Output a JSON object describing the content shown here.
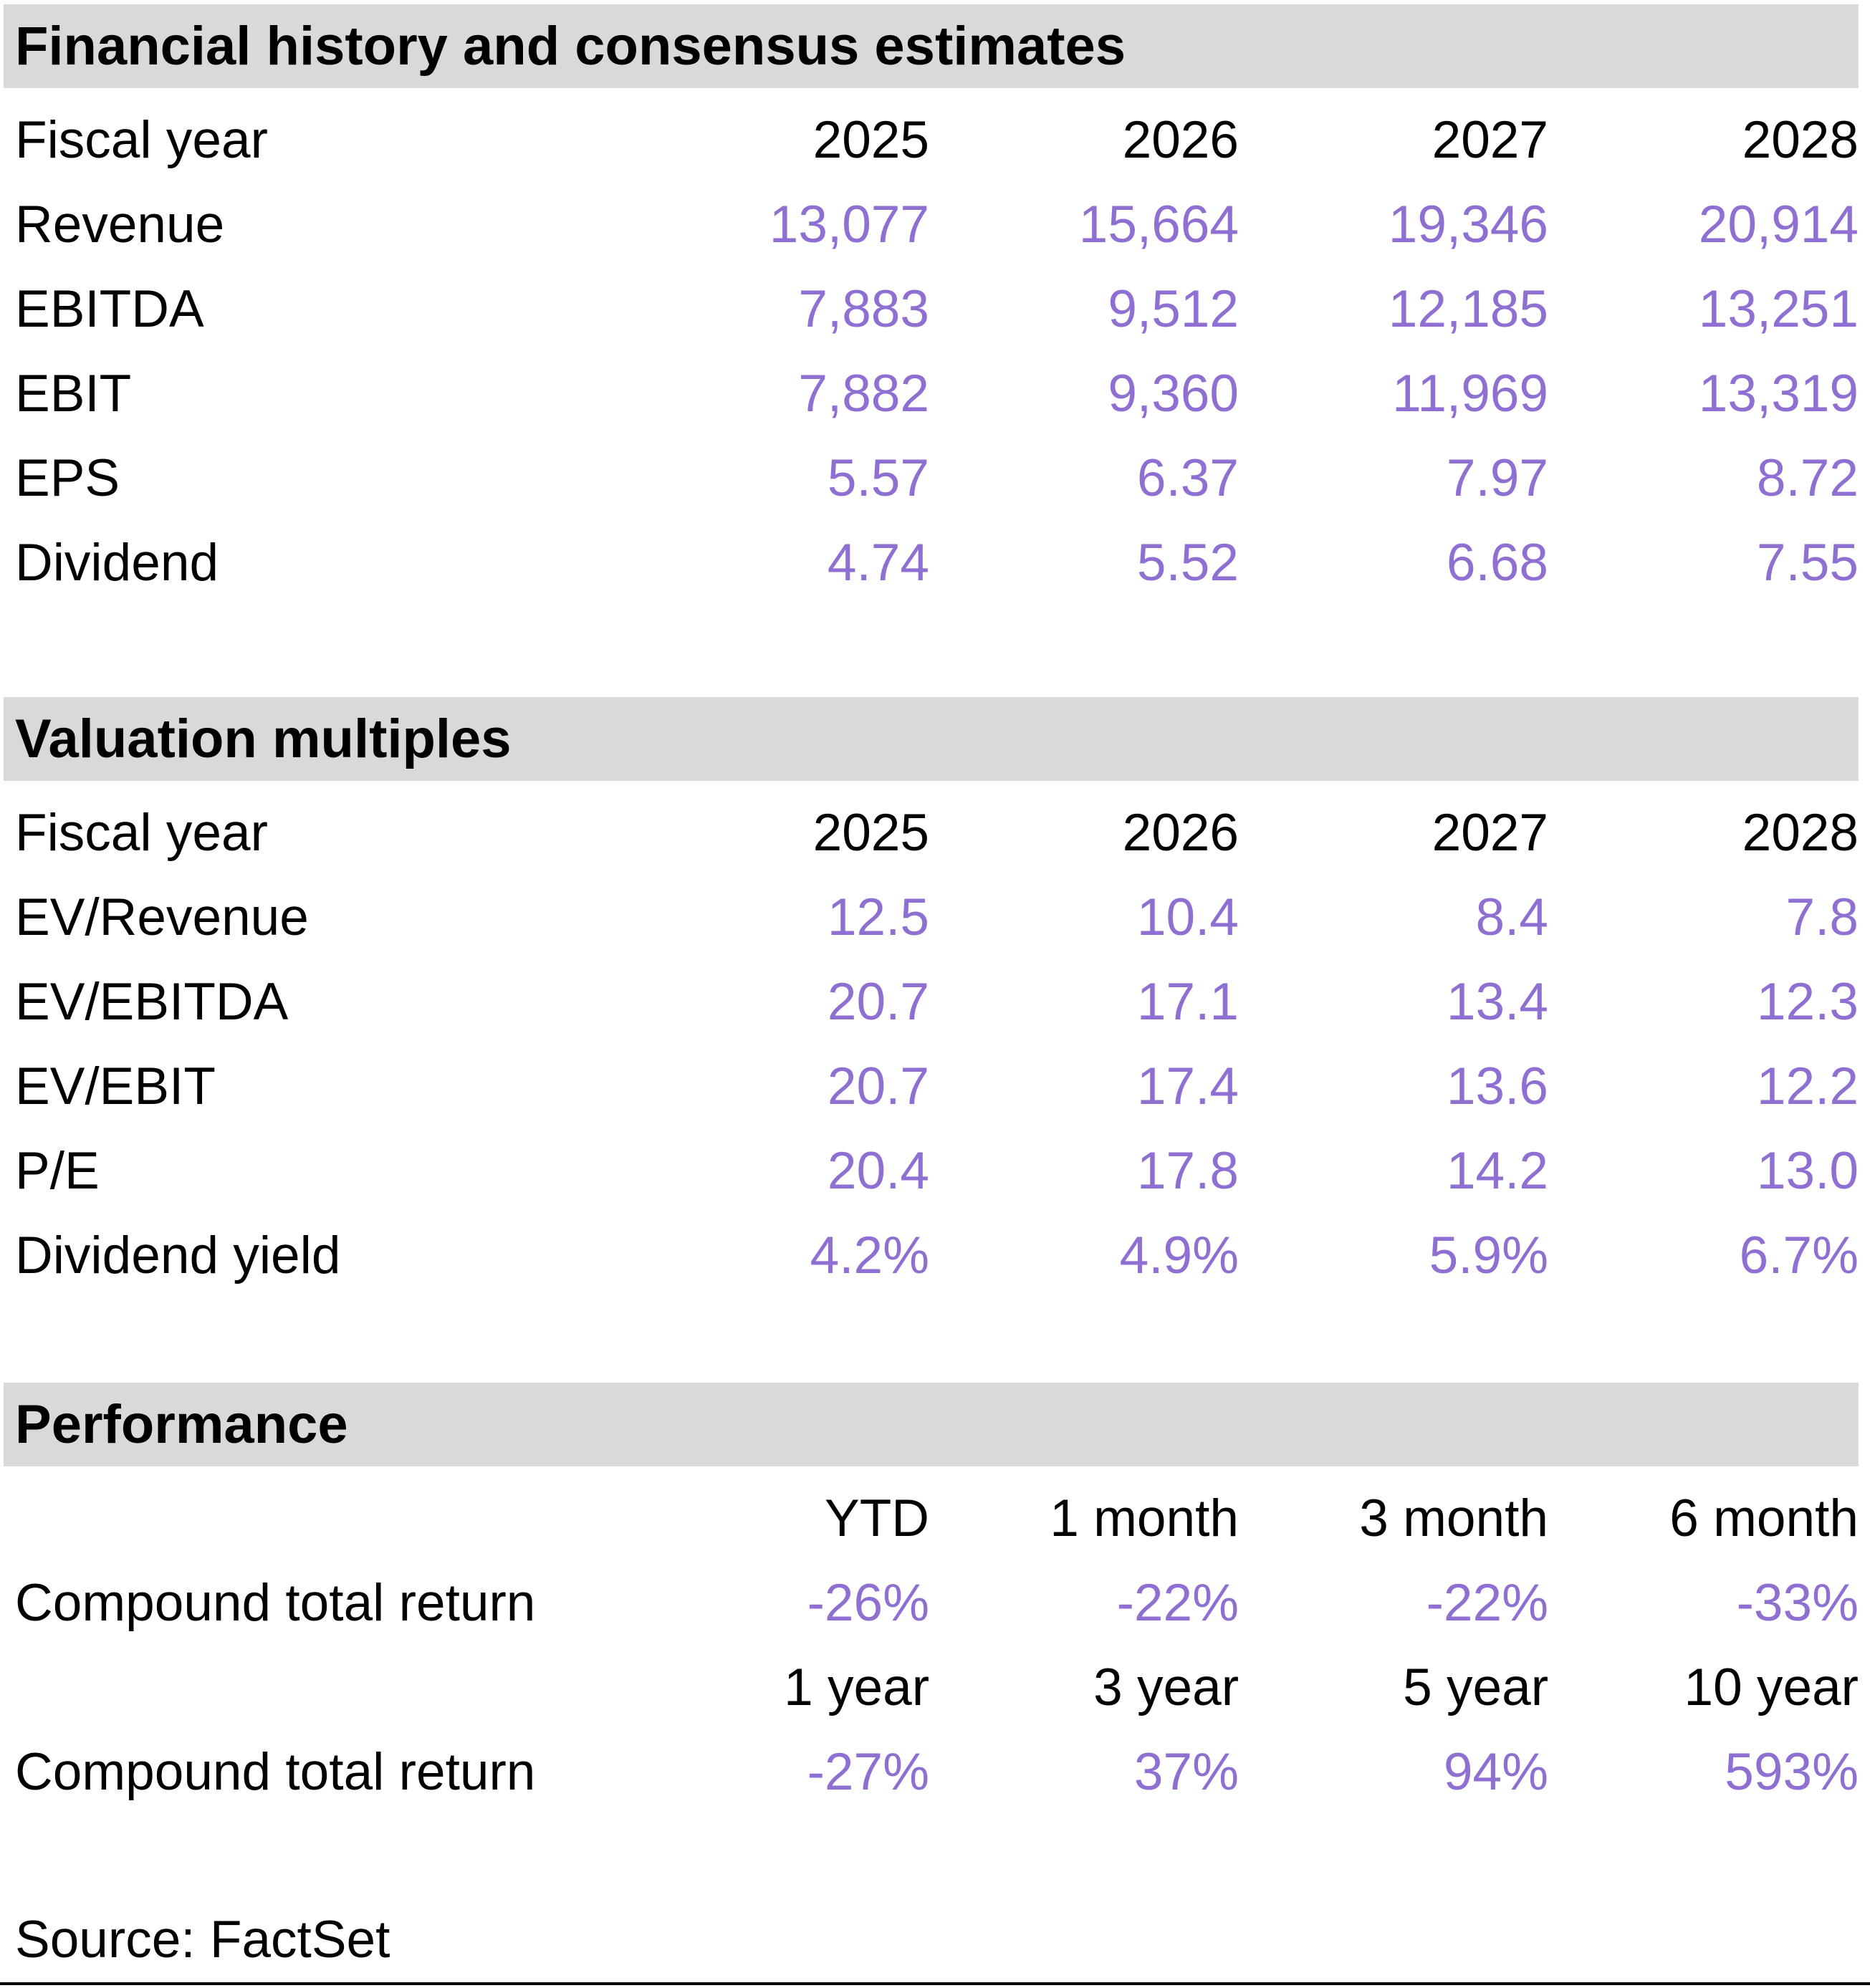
{
  "colors": {
    "value_purple": "#8f6fd2",
    "section_header_bg": "#d9d9d9",
    "text": "#000000"
  },
  "financial": {
    "title": "Financial history and consensus estimates",
    "fiscal_label": "Fiscal year",
    "years": [
      "2025",
      "2026",
      "2027",
      "2028"
    ],
    "rows": [
      {
        "label": "Revenue",
        "values": [
          "13,077",
          "15,664",
          "19,346",
          "20,914"
        ]
      },
      {
        "label": "EBITDA",
        "values": [
          "7,883",
          "9,512",
          "12,185",
          "13,251"
        ]
      },
      {
        "label": "EBIT",
        "values": [
          "7,882",
          "9,360",
          "11,969",
          "13,319"
        ]
      },
      {
        "label": "EPS",
        "values": [
          "5.57",
          "6.37",
          "7.97",
          "8.72"
        ]
      },
      {
        "label": "Dividend",
        "values": [
          "4.74",
          "5.52",
          "6.68",
          "7.55"
        ]
      }
    ]
  },
  "valuation": {
    "title": "Valuation multiples",
    "fiscal_label": "Fiscal year",
    "years": [
      "2025",
      "2026",
      "2027",
      "2028"
    ],
    "rows": [
      {
        "label": "EV/Revenue",
        "values": [
          "12.5",
          "10.4",
          "8.4",
          "7.8"
        ]
      },
      {
        "label": "EV/EBITDA",
        "values": [
          "20.7",
          "17.1",
          "13.4",
          "12.3"
        ]
      },
      {
        "label": "EV/EBIT",
        "values": [
          "20.7",
          "17.4",
          "13.6",
          "12.2"
        ]
      },
      {
        "label": "P/E",
        "values": [
          "20.4",
          "17.8",
          "14.2",
          "13.0"
        ]
      },
      {
        "label": "Dividend yield",
        "values": [
          "4.2%",
          "4.9%",
          "5.9%",
          "6.7%"
        ]
      }
    ]
  },
  "performance": {
    "title": "Performance",
    "periods_short": [
      "YTD",
      "1 month",
      "3 month",
      "6 month"
    ],
    "return_label_short": "Compound total return",
    "returns_short": [
      "-26%",
      "-22%",
      "-22%",
      "-33%"
    ],
    "periods_long": [
      "1 year",
      "3 year",
      "5 year",
      "10 year"
    ],
    "return_label_long": "Compound total return",
    "returns_long": [
      "-27%",
      "37%",
      "94%",
      "593%"
    ]
  },
  "source_note": "Source: FactSet"
}
